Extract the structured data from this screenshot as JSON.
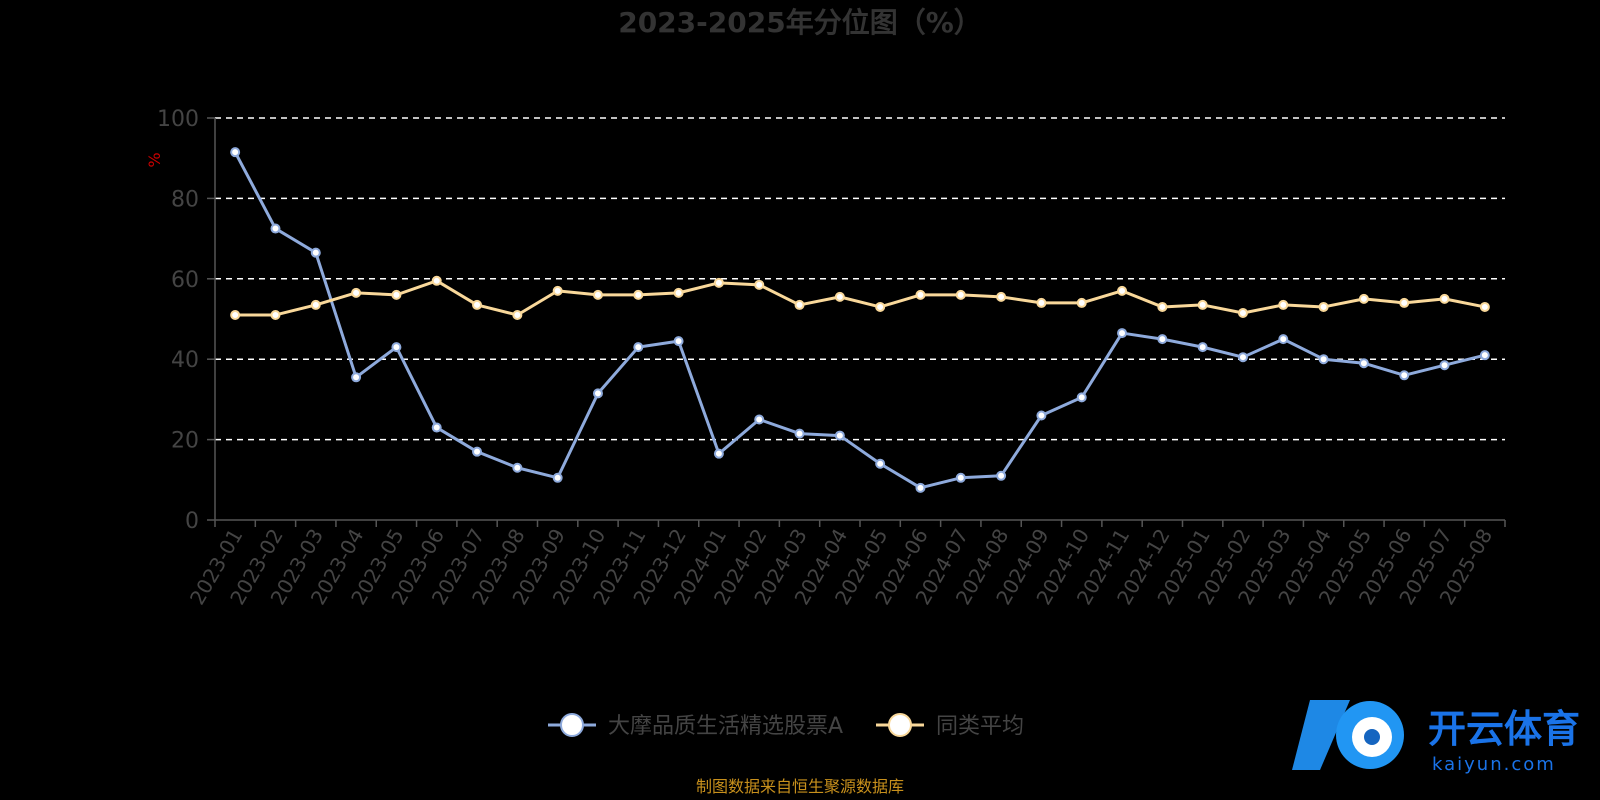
{
  "chart_data": {
    "type": "line",
    "title": "2023-2025年分位图（%）",
    "ylabel": "%",
    "ylim": [
      0,
      100
    ],
    "yticks": [
      0,
      20,
      40,
      60,
      80,
      100
    ],
    "grid": true,
    "legend_position": "bottom",
    "categories": [
      "2023-01",
      "2023-02",
      "2023-03",
      "2023-04",
      "2023-05",
      "2023-06",
      "2023-07",
      "2023-08",
      "2023-09",
      "2023-10",
      "2023-11",
      "2023-12",
      "2024-01",
      "2024-02",
      "2024-03",
      "2024-04",
      "2024-05",
      "2024-06",
      "2024-07",
      "2024-08",
      "2024-09",
      "2024-10",
      "2024-11",
      "2024-12",
      "2025-01",
      "2025-02",
      "2025-03",
      "2025-04",
      "2025-05",
      "2025-06",
      "2025-07",
      "2025-08"
    ],
    "series": [
      {
        "name": "大摩品质生活精选股票A",
        "color": "#8eaadc",
        "values": [
          91.5,
          72.5,
          66.5,
          35.5,
          43,
          23,
          17,
          13,
          10.5,
          31.5,
          43,
          44.5,
          16.5,
          25,
          21.5,
          21,
          14,
          8,
          10.5,
          11,
          26,
          30.5,
          46.5,
          45,
          43,
          40.5,
          45,
          40,
          39,
          36,
          38.5,
          41
        ]
      },
      {
        "name": "同类平均",
        "color": "#f9d89a",
        "values": [
          51,
          51,
          53.5,
          56.5,
          56,
          59.5,
          53.5,
          51,
          57,
          56,
          56,
          56.5,
          59,
          58.5,
          53.5,
          55.5,
          53,
          56,
          56,
          55.5,
          54,
          54,
          57,
          53,
          53.5,
          51.5,
          53.5,
          53,
          55,
          54,
          55,
          53
        ]
      }
    ]
  },
  "footer": {
    "source": "制图数据来自恒生聚源数据库"
  },
  "watermark": {
    "brand": "开云体育",
    "url": "kaiyun.com"
  }
}
